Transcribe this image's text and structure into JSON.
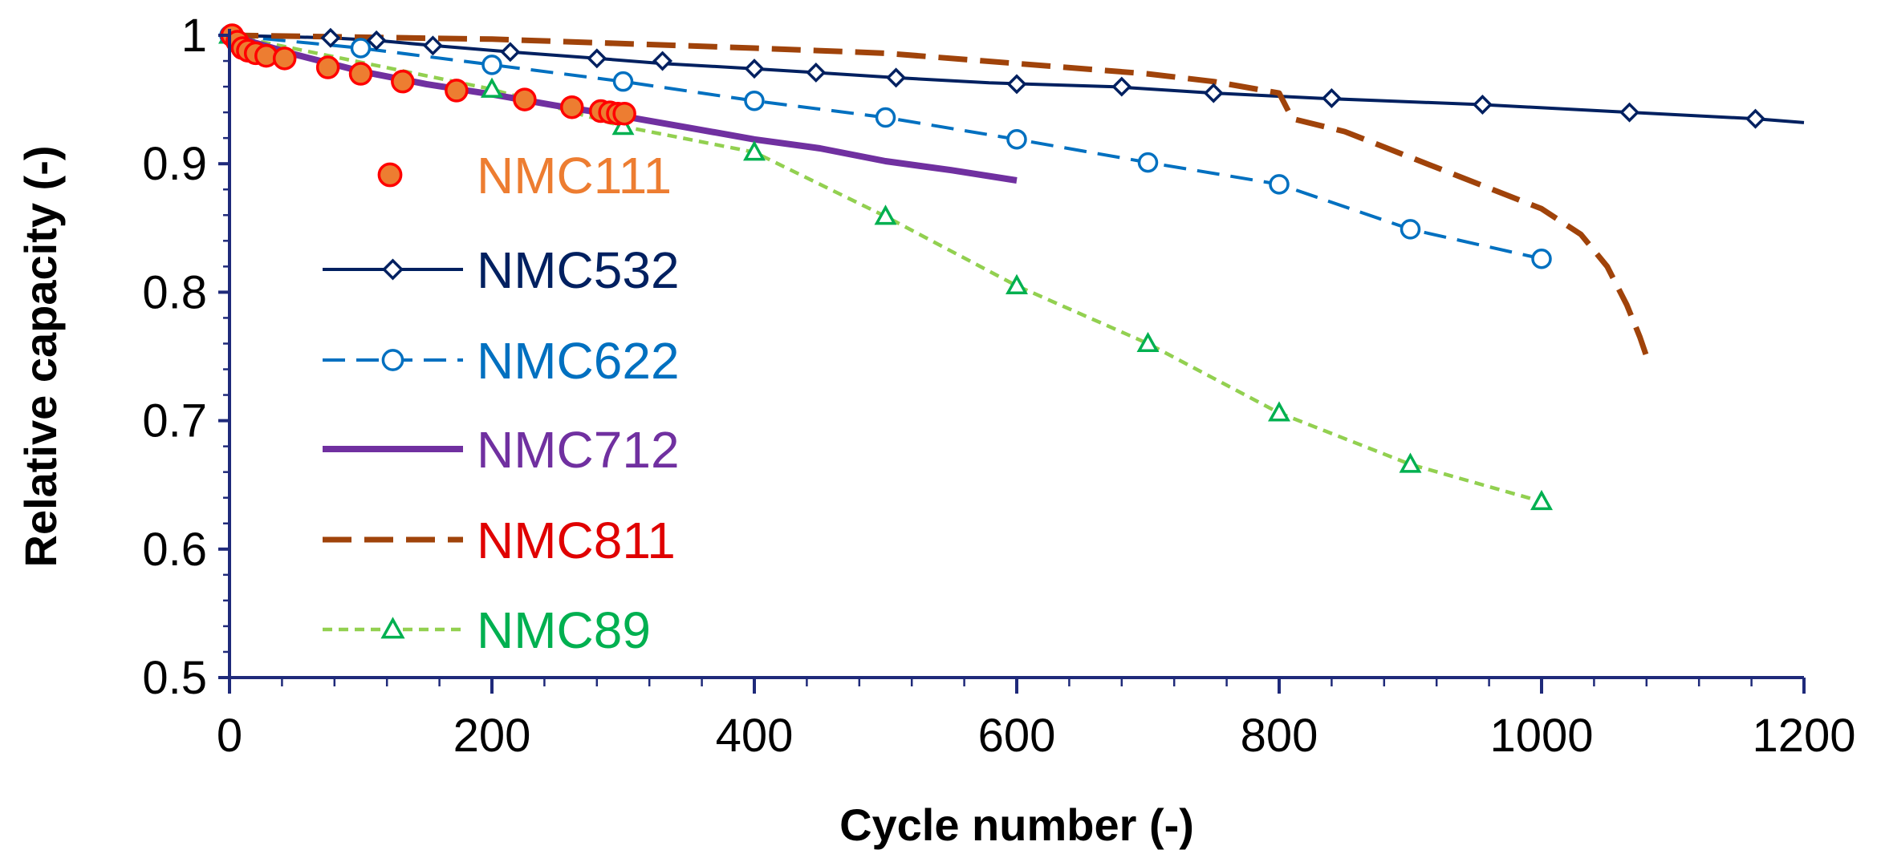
{
  "chart_data": {
    "type": "line",
    "title": "",
    "xlabel": "Cycle number (-)",
    "ylabel": "Relative capacity (-)",
    "xlim": [
      0,
      1200
    ],
    "ylim": [
      0.5,
      1.0
    ],
    "xticks": [
      0,
      200,
      400,
      600,
      800,
      1000,
      1200
    ],
    "xtick_labels": [
      "0",
      "200",
      "400",
      "600",
      "800",
      "1000",
      "1200"
    ],
    "yticks": [
      0.5,
      0.6,
      0.7,
      0.8,
      0.9,
      1.0
    ],
    "ytick_labels": [
      "0.5",
      "0.6",
      "0.7",
      "0.8",
      "0.9",
      "1"
    ],
    "grid": false,
    "legend_position": "left-inside",
    "series": [
      {
        "name": "NMC111",
        "label_color": "#ED7D31",
        "line_color": "none",
        "dash": "",
        "marker": "circle-filled",
        "marker_fill": "#ED7D31",
        "marker_stroke": "#FF0000",
        "x": [
          2,
          6,
          10,
          14,
          20,
          28,
          42,
          75,
          100,
          132,
          173,
          225,
          261,
          283,
          290,
          296,
          301
        ],
        "y": [
          1.0,
          0.995,
          0.99,
          0.988,
          0.986,
          0.984,
          0.982,
          0.975,
          0.97,
          0.964,
          0.957,
          0.95,
          0.944,
          0.941,
          0.94,
          0.939,
          0.939
        ]
      },
      {
        "name": "NMC532",
        "label_color": "#002060",
        "line_color": "#002060",
        "dash": "",
        "marker": "diamond-open",
        "x": [
          0,
          77,
          112,
          155,
          214,
          280,
          330,
          400,
          447,
          508,
          579,
          673,
          750,
          830,
          955,
          1067,
          1163,
          1200
        ],
        "y": [
          1.0,
          0.998,
          0.996,
          0.992,
          0.987,
          0.982,
          0.978,
          0.974,
          0.971,
          0.967,
          0.963,
          0.96,
          0.955,
          0.951,
          0.946,
          0.94,
          0.935,
          0.932
        ],
        "marker_x": [
          77,
          112,
          155,
          214,
          280,
          330,
          400,
          447,
          508,
          600,
          680,
          750,
          840,
          955,
          1067,
          1163
        ],
        "marker_y": [
          0.998,
          0.996,
          0.992,
          0.987,
          0.982,
          0.98,
          0.974,
          0.971,
          0.967,
          0.962,
          0.96,
          0.955,
          0.951,
          0.946,
          0.94,
          0.935
        ]
      },
      {
        "name": "NMC622",
        "label_color": "#0070C0",
        "line_color": "#0070C0",
        "dash": "28 14",
        "marker": "circle-open",
        "x": [
          0,
          100,
          200,
          300,
          400,
          500,
          600,
          700,
          800,
          900,
          1000
        ],
        "y": [
          1.0,
          0.99,
          0.977,
          0.964,
          0.949,
          0.936,
          0.919,
          0.901,
          0.884,
          0.849,
          0.826
        ]
      },
      {
        "name": "NMC712",
        "label_color": "#7030A0",
        "line_color": "#7030A0",
        "dash": "",
        "marker": "none",
        "x": [
          0,
          50,
          100,
          150,
          200,
          250,
          300,
          350,
          400,
          450,
          500,
          550,
          600
        ],
        "y": [
          1.0,
          0.985,
          0.972,
          0.962,
          0.954,
          0.945,
          0.937,
          0.928,
          0.919,
          0.912,
          0.902,
          0.895,
          0.887
        ]
      },
      {
        "name": "NMC811",
        "label_color": "#E00000",
        "line_color": "#A0430A",
        "dash": "36 16",
        "marker": "none",
        "x": [
          0,
          200,
          400,
          500,
          600,
          700,
          750,
          800,
          810,
          850,
          900,
          950,
          1000,
          1030,
          1050,
          1065,
          1075,
          1080
        ],
        "y": [
          1.0,
          0.997,
          0.99,
          0.986,
          0.978,
          0.97,
          0.964,
          0.955,
          0.935,
          0.925,
          0.905,
          0.885,
          0.865,
          0.845,
          0.82,
          0.79,
          0.765,
          0.75
        ]
      },
      {
        "name": "NMC89",
        "label_color": "#00B050",
        "line_color": "#92D050",
        "dash": "12 8",
        "marker": "triangle-open",
        "marker_stroke": "#00B050",
        "x": [
          0,
          200,
          300,
          400,
          500,
          600,
          700,
          800,
          900,
          1000
        ],
        "y": [
          1.0,
          0.958,
          0.929,
          0.909,
          0.859,
          0.805,
          0.76,
          0.706,
          0.666,
          0.637
        ]
      }
    ]
  }
}
